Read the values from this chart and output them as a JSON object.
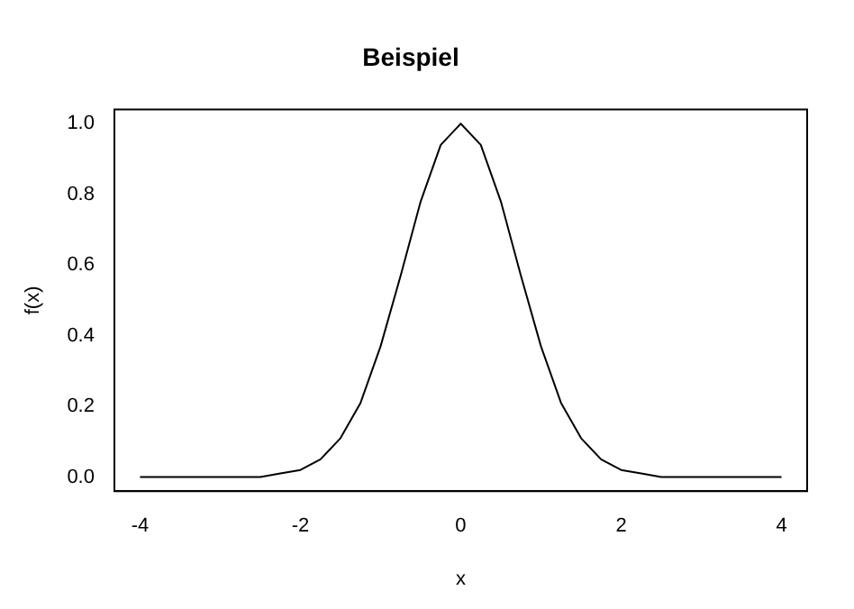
{
  "chart_data": {
    "type": "line",
    "title": "Beispiel",
    "xlabel": "x",
    "ylabel": "f(x)",
    "x": [
      -4,
      -3.75,
      -3.5,
      -3.25,
      -3,
      -2.75,
      -2.5,
      -2.25,
      -2,
      -1.75,
      -1.5,
      -1.25,
      -1,
      -0.75,
      -0.5,
      -0.25,
      0,
      0.25,
      0.5,
      0.75,
      1,
      1.25,
      1.5,
      1.75,
      2,
      2.25,
      2.5,
      2.75,
      3,
      3.25,
      3.5,
      3.75,
      4
    ],
    "series": [
      {
        "color": "#000000",
        "values": [
          0,
          0,
          0,
          0,
          0,
          0,
          0,
          0.01,
          0.02,
          0.05,
          0.11,
          0.21,
          0.37,
          0.57,
          0.78,
          0.94,
          1,
          0.94,
          0.78,
          0.57,
          0.37,
          0.21,
          0.11,
          0.05,
          0.02,
          0.01,
          0,
          0,
          0,
          0,
          0,
          0,
          0
        ]
      }
    ],
    "xlim": [
      -4.32,
      4.32
    ],
    "ylim": [
      -0.04,
      1.04
    ],
    "xticks": [
      -4,
      -2,
      0,
      2,
      4
    ],
    "yticks": [
      {
        "value": 0,
        "label": "0.0"
      },
      0.2,
      0.4,
      0.6,
      0.8,
      {
        "value": 1,
        "label": "1.0"
      }
    ],
    "grid": false,
    "legend": false,
    "marker": "none",
    "line_style": "solid"
  }
}
